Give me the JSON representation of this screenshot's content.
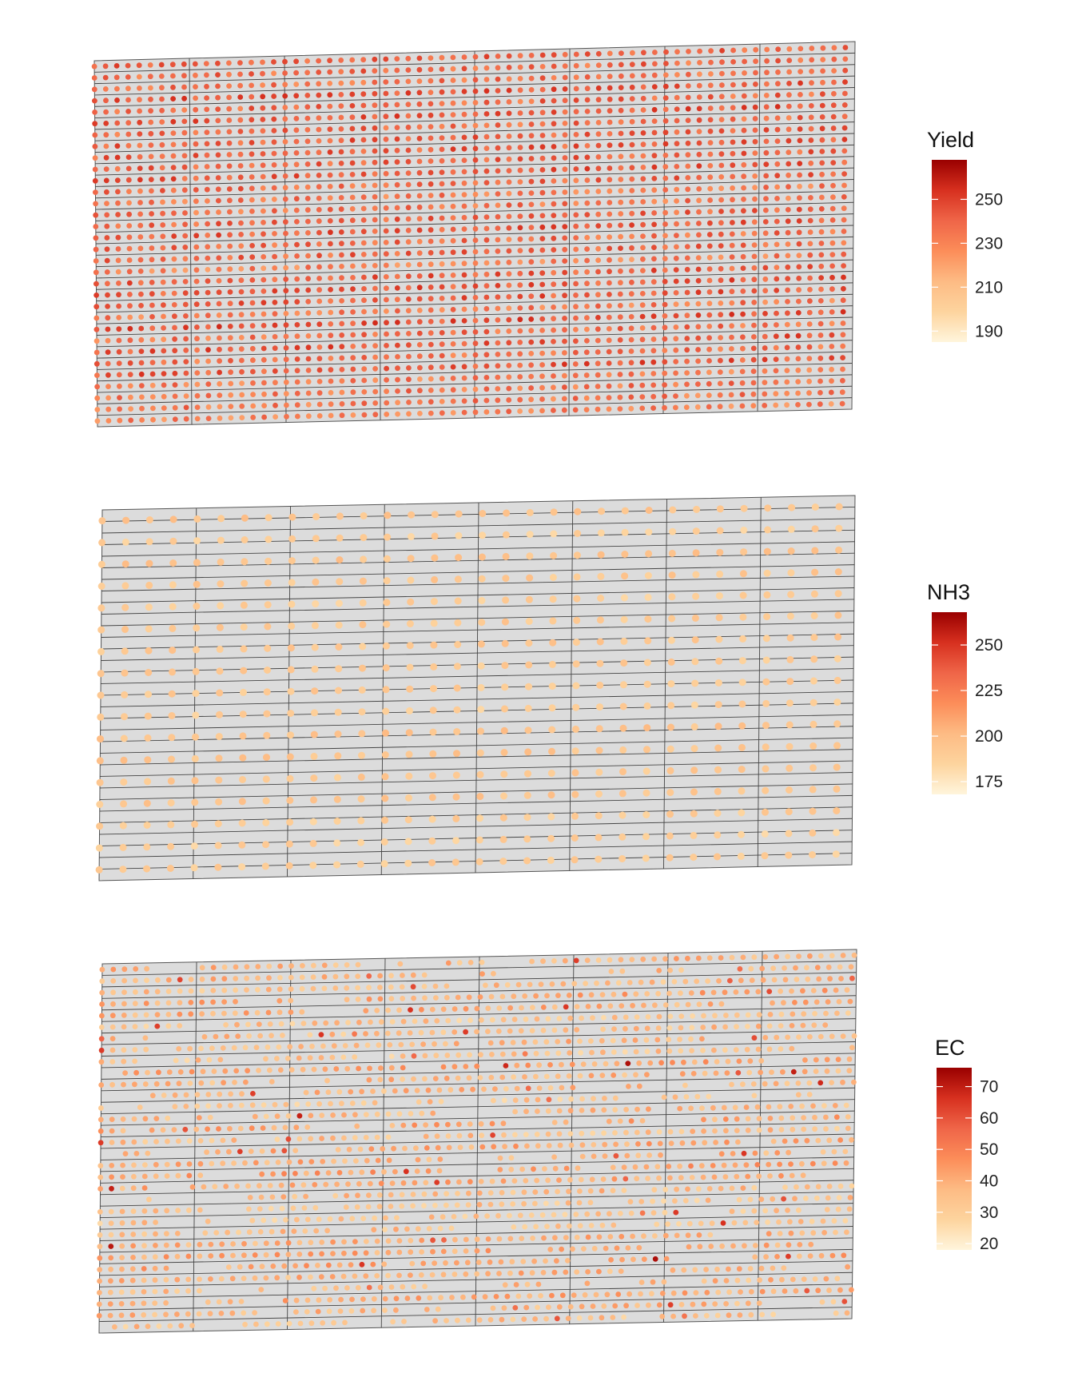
{
  "chart_data": [
    {
      "type": "scatter",
      "variable": "Yield",
      "legend_title": "Yield",
      "legend_position": "right",
      "color_scale": [
        "#fff5dc",
        "#fdd49e",
        "#fdbb84",
        "#fc8d59",
        "#ef6548",
        "#d7301f",
        "#990000"
      ],
      "value_range": [
        185,
        268
      ],
      "legend_ticks": [
        "250",
        "230",
        "210",
        "190"
      ],
      "legend_tick_values": [
        250,
        230,
        210,
        190
      ],
      "grid": {
        "columns": 8,
        "rows": 32
      },
      "pass_rows": 32,
      "typical_value": 238,
      "spread": 14
    },
    {
      "type": "scatter",
      "variable": "NH3",
      "legend_title": "NH3",
      "legend_position": "right",
      "color_scale": [
        "#fff5dc",
        "#fdd49e",
        "#fdbb84",
        "#fc8d59",
        "#ef6548",
        "#d7301f",
        "#990000"
      ],
      "value_range": [
        168,
        268
      ],
      "legend_ticks": [
        "250",
        "225",
        "200",
        "175"
      ],
      "legend_tick_values": [
        250,
        225,
        200,
        175
      ],
      "grid": {
        "columns": 8,
        "rows": 32
      },
      "pass_rows": 17,
      "typical_value": 192,
      "spread": 8
    },
    {
      "type": "scatter",
      "variable": "EC",
      "legend_title": "EC",
      "legend_position": "right",
      "color_scale": [
        "#fff5dc",
        "#fdd49e",
        "#fdbb84",
        "#fc8d59",
        "#ef6548",
        "#d7301f",
        "#990000"
      ],
      "value_range": [
        18,
        76
      ],
      "legend_ticks": [
        "70",
        "60",
        "50",
        "40",
        "30",
        "20"
      ],
      "legend_tick_values": [
        70,
        60,
        50,
        40,
        30,
        20
      ],
      "grid": {
        "columns": 8,
        "rows": 32
      },
      "pass_rows": 32,
      "typical_value": 38,
      "spread": 10
    }
  ]
}
